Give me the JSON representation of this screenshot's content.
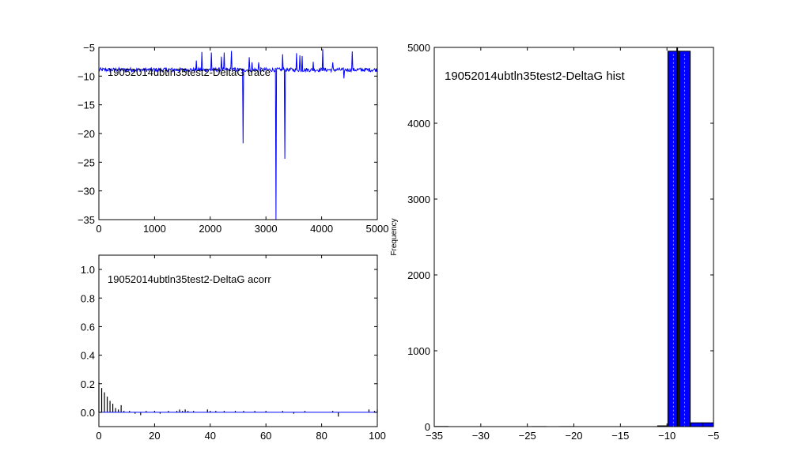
{
  "figure": {
    "background": "#ffffff",
    "line_color": "#0000ff",
    "bar_color": "#0000ff"
  },
  "chart_data": [
    {
      "id": "trace",
      "type": "line",
      "title": "19052014ubtln35test2-DeltaG trace",
      "xlabel": "",
      "ylabel": "",
      "xlim": [
        0,
        5000
      ],
      "ylim": [
        -35,
        -5
      ],
      "xticks": [
        0,
        1000,
        2000,
        3000,
        4000,
        5000
      ],
      "yticks": [
        -35,
        -30,
        -25,
        -20,
        -15,
        -10,
        -5
      ],
      "tick_labels_x": [
        "0",
        "1000",
        "2000",
        "3000",
        "4000",
        "5000"
      ],
      "tick_labels_y": [
        "−35",
        "−30",
        "−25",
        "−20",
        "−15",
        "−10",
        "−5"
      ],
      "baseline": {
        "mean": -8.9,
        "noise": 0.35,
        "n": 5000
      },
      "spikes": [
        {
          "x": 1750,
          "y": -7.3
        },
        {
          "x": 1850,
          "y": -5.8
        },
        {
          "x": 2020,
          "y": -5.9
        },
        {
          "x": 2200,
          "y": -6.6
        },
        {
          "x": 2250,
          "y": -5.9
        },
        {
          "x": 2380,
          "y": -5.6
        },
        {
          "x": 2590,
          "y": -21.7
        },
        {
          "x": 2700,
          "y": -6.7
        },
        {
          "x": 2750,
          "y": -7.6
        },
        {
          "x": 2870,
          "y": -7.6
        },
        {
          "x": 3180,
          "y": -35
        },
        {
          "x": 3300,
          "y": -6.2
        },
        {
          "x": 3340,
          "y": -24.4
        },
        {
          "x": 3550,
          "y": -6.0
        },
        {
          "x": 3610,
          "y": -6.4
        },
        {
          "x": 3650,
          "y": -6.5
        },
        {
          "x": 3850,
          "y": -7.5
        },
        {
          "x": 4020,
          "y": -5.3
        },
        {
          "x": 4200,
          "y": -7.6
        },
        {
          "x": 4400,
          "y": -10.4
        },
        {
          "x": 4550,
          "y": -5.7
        }
      ],
      "grid": false,
      "legend": "none"
    },
    {
      "id": "acorr",
      "type": "bar",
      "title": "19052014ubtln35test2-DeltaG acorr",
      "xlabel": "",
      "ylabel": "",
      "xlim": [
        0,
        100
      ],
      "ylim": [
        -0.1,
        1.1
      ],
      "xticks": [
        0,
        20,
        40,
        60,
        80,
        100
      ],
      "yticks": [
        0.0,
        0.2,
        0.4,
        0.6,
        0.8,
        1.0
      ],
      "tick_labels_x": [
        "0",
        "20",
        "40",
        "60",
        "80",
        "100"
      ],
      "tick_labels_y": [
        "0.0",
        "0.2",
        "0.4",
        "0.6",
        "0.8",
        "1.0"
      ],
      "lags": [
        0,
        1,
        2,
        3,
        4,
        5,
        6,
        7,
        8,
        9,
        10,
        11,
        12,
        13,
        14,
        15,
        16,
        17,
        18,
        19,
        20,
        21,
        22,
        23,
        24,
        25,
        26,
        27,
        28,
        29,
        30,
        31,
        32,
        33,
        34,
        35,
        36,
        37,
        38,
        39,
        40,
        41,
        42,
        43,
        44,
        45,
        46,
        47,
        48,
        49,
        50,
        51,
        52,
        53,
        54,
        55,
        56,
        57,
        58,
        59,
        60,
        61,
        62,
        63,
        64,
        65,
        66,
        67,
        68,
        69,
        70,
        71,
        72,
        73,
        74,
        75,
        76,
        77,
        78,
        79,
        80,
        81,
        82,
        83,
        84,
        85,
        86,
        87,
        88,
        89,
        90,
        91,
        92,
        93,
        94,
        95,
        96,
        97,
        98,
        99,
        100
      ],
      "values": [
        0.21,
        0.17,
        0.14,
        0.11,
        0.08,
        0.06,
        0.03,
        0.02,
        0.05,
        0.01,
        0.0,
        0.01,
        0.0,
        -0.01,
        0.0,
        -0.02,
        0.0,
        0.01,
        0.0,
        0.0,
        0.01,
        0.0,
        -0.01,
        0.0,
        0.0,
        0.01,
        0.0,
        0.0,
        0.01,
        0.02,
        0.01,
        0.02,
        0.01,
        0.0,
        0.01,
        0.0,
        0.0,
        0.0,
        0.0,
        0.02,
        0.01,
        0.0,
        0.01,
        0.0,
        0.0,
        0.01,
        0.0,
        0.0,
        0.0,
        0.01,
        0.0,
        0.0,
        0.01,
        0.0,
        0.0,
        0.0,
        0.01,
        0.0,
        0.0,
        0.0,
        0.01,
        0.0,
        0.0,
        0.0,
        0.0,
        0.0,
        0.01,
        0.0,
        0.0,
        0.0,
        -0.01,
        0.0,
        0.0,
        0.0,
        0.01,
        0.0,
        0.0,
        0.0,
        0.0,
        0.0,
        0.0,
        0.0,
        0.0,
        0.0,
        0.01,
        0.0,
        -0.03,
        0.0,
        0.0,
        0.0,
        0.0,
        0.0,
        0.0,
        0.0,
        0.0,
        0.0,
        0.0,
        0.02,
        0.0,
        0.01,
        0.02
      ],
      "grid": false,
      "legend": "none"
    },
    {
      "id": "hist",
      "type": "bar",
      "title": "19052014ubtln35test2-DeltaG hist",
      "xlabel": "",
      "ylabel": "Frequency",
      "xlim": [
        -35,
        -5
      ],
      "ylim": [
        0,
        5000
      ],
      "xticks": [
        -35,
        -30,
        -25,
        -20,
        -15,
        -10,
        -5
      ],
      "yticks": [
        0,
        1000,
        2000,
        3000,
        4000,
        5000
      ],
      "tick_labels_x": [
        "−35",
        "−30",
        "−25",
        "−20",
        "−15",
        "−10",
        "−5"
      ],
      "tick_labels_y": [
        "0",
        "1000",
        "2000",
        "3000",
        "4000",
        "5000"
      ],
      "bins": [
        {
          "x0": -35,
          "x1": -33.5,
          "count": 2
        },
        {
          "x0": -33.5,
          "x1": -32,
          "count": 0
        },
        {
          "x0": -32,
          "x1": -30.5,
          "count": 0
        },
        {
          "x0": -30.5,
          "x1": -29,
          "count": 0
        },
        {
          "x0": -29,
          "x1": -27.5,
          "count": 0
        },
        {
          "x0": -27.5,
          "x1": -26,
          "count": 0
        },
        {
          "x0": -26,
          "x1": -24.5,
          "count": 0
        },
        {
          "x0": -24.5,
          "x1": -23,
          "count": 1
        },
        {
          "x0": -23,
          "x1": -21.5,
          "count": 0
        },
        {
          "x0": -21.5,
          "x1": -20,
          "count": 1
        },
        {
          "x0": -20,
          "x1": -18.5,
          "count": 0
        },
        {
          "x0": -18.5,
          "x1": -17,
          "count": 0
        },
        {
          "x0": -17,
          "x1": -15.5,
          "count": 0
        },
        {
          "x0": -15.5,
          "x1": -14,
          "count": 0
        },
        {
          "x0": -14,
          "x1": -12.5,
          "count": 0
        },
        {
          "x0": -12.5,
          "x1": -11,
          "count": 0
        },
        {
          "x0": -11,
          "x1": -9.9,
          "count": 10
        },
        {
          "x0": -9.9,
          "x1": -8.7,
          "count": 4950
        },
        {
          "x0": -8.7,
          "x1": -7.5,
          "count": 4950
        },
        {
          "x0": -7.5,
          "x1": -6.2,
          "count": 50
        },
        {
          "x0": -6.2,
          "x1": -5,
          "count": 50
        }
      ],
      "mean_line_x": -8.9,
      "grid": false,
      "legend": "none"
    }
  ]
}
